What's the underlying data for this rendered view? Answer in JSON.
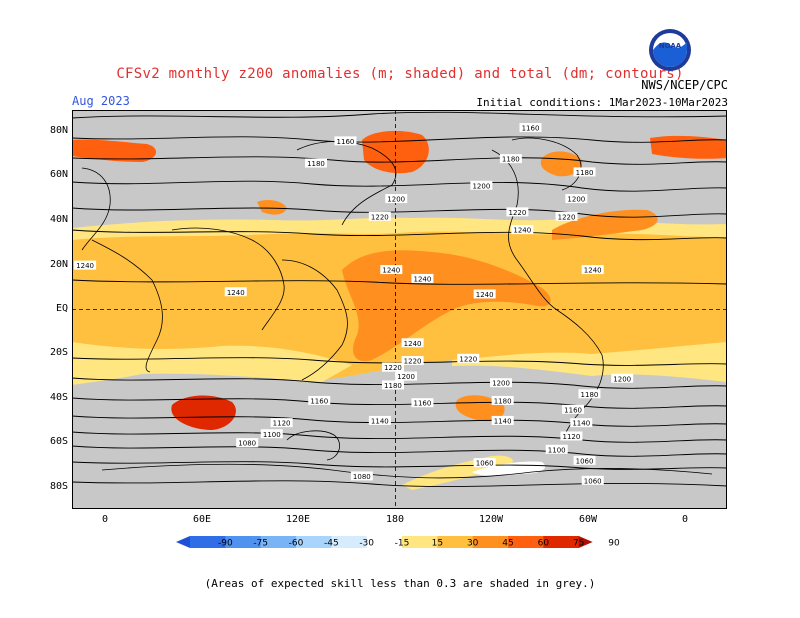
{
  "title": "CFSv2 monthly z200 anomalies (m; shaded) and total (dm; contours)",
  "month": "Aug 2023",
  "agency": "NWS/NCEP/CPC",
  "initial_conditions": "Initial conditions: 1Mar2023-10Mar2023",
  "logo_text": "NOAA",
  "footnote": "(Areas of expected skill less than 0.3 are shaded in grey.)",
  "lat_labels": [
    "80N",
    "60N",
    "40N",
    "20N",
    "EQ",
    "20S",
    "40S",
    "60S",
    "80S"
  ],
  "lon_labels": [
    "0",
    "60E",
    "120E",
    "180",
    "120W",
    "60W",
    "0"
  ],
  "colorbar": {
    "ticks": [
      "-90",
      "-75",
      "-60",
      "-45",
      "-30",
      "-15",
      "15",
      "30",
      "45",
      "60",
      "75",
      "90"
    ],
    "colors": [
      "#1e4fd8",
      "#2f6ee6",
      "#4f92f0",
      "#79b4f6",
      "#a9d4fb",
      "#d6ecfd",
      "#ffffff",
      "#ffe680",
      "#ffc040",
      "#ff9020",
      "#ff6010",
      "#e02800",
      "#b01000"
    ]
  },
  "contour_labels": [
    {
      "t": "1160",
      "x": -100,
      "y": 82
    },
    {
      "t": "1160",
      "x": 147,
      "y": 76
    },
    {
      "t": "1180",
      "x": -112,
      "y": 68
    },
    {
      "t": "1180",
      "x": 129,
      "y": 66
    },
    {
      "t": "1180",
      "x": -67,
      "y": 62
    },
    {
      "t": "1200",
      "x": -130,
      "y": 56
    },
    {
      "t": "1200",
      "x": 178,
      "y": 50
    },
    {
      "t": "1200",
      "x": -72,
      "y": 50
    },
    {
      "t": "1220",
      "x": -108,
      "y": 44
    },
    {
      "t": "1220",
      "x": 168,
      "y": 42
    },
    {
      "t": "1220",
      "x": -78,
      "y": 42
    },
    {
      "t": "1240",
      "x": -105,
      "y": 36
    },
    {
      "t": "1240",
      "x": -166,
      "y": 14
    },
    {
      "t": "1240",
      "x": -62,
      "y": 18
    },
    {
      "t": "1240",
      "x": -12,
      "y": 20
    },
    {
      "t": "1240",
      "x": 175,
      "y": 18
    },
    {
      "t": "1240",
      "x": -128,
      "y": 7
    },
    {
      "t": "1240",
      "x": 80,
      "y": 8
    },
    {
      "t": "1240",
      "x": -172,
      "y": -15
    },
    {
      "t": "1220",
      "x": -138,
      "y": -22
    },
    {
      "t": "1220",
      "x": -172,
      "y": -23
    },
    {
      "t": "1220",
      "x": 176,
      "y": -26
    },
    {
      "t": "1200",
      "x": -176,
      "y": -30
    },
    {
      "t": "1180",
      "x": 176,
      "y": -34
    },
    {
      "t": "1200",
      "x": -118,
      "y": -33
    },
    {
      "t": "1200",
      "x": -44,
      "y": -31
    },
    {
      "t": "1180",
      "x": -64,
      "y": -38
    },
    {
      "t": "1180",
      "x": -117,
      "y": -41
    },
    {
      "t": "1160",
      "x": -166,
      "y": -42
    },
    {
      "t": "1160",
      "x": 131,
      "y": -41
    },
    {
      "t": "1160",
      "x": -74,
      "y": -45
    },
    {
      "t": "1140",
      "x": -117,
      "y": -50
    },
    {
      "t": "1140",
      "x": 168,
      "y": -50
    },
    {
      "t": "1140",
      "x": -69,
      "y": -51
    },
    {
      "t": "1120",
      "x": 108,
      "y": -51
    },
    {
      "t": "1120",
      "x": -75,
      "y": -57
    },
    {
      "t": "1100",
      "x": 102,
      "y": -56
    },
    {
      "t": "1100",
      "x": -84,
      "y": -63
    },
    {
      "t": "1080",
      "x": 87,
      "y": -60
    },
    {
      "t": "1060",
      "x": -128,
      "y": -69
    },
    {
      "t": "1080",
      "x": 157,
      "y": -75
    },
    {
      "t": "1060",
      "x": -67,
      "y": -68
    },
    {
      "t": "1060",
      "x": -62,
      "y": -77
    }
  ]
}
